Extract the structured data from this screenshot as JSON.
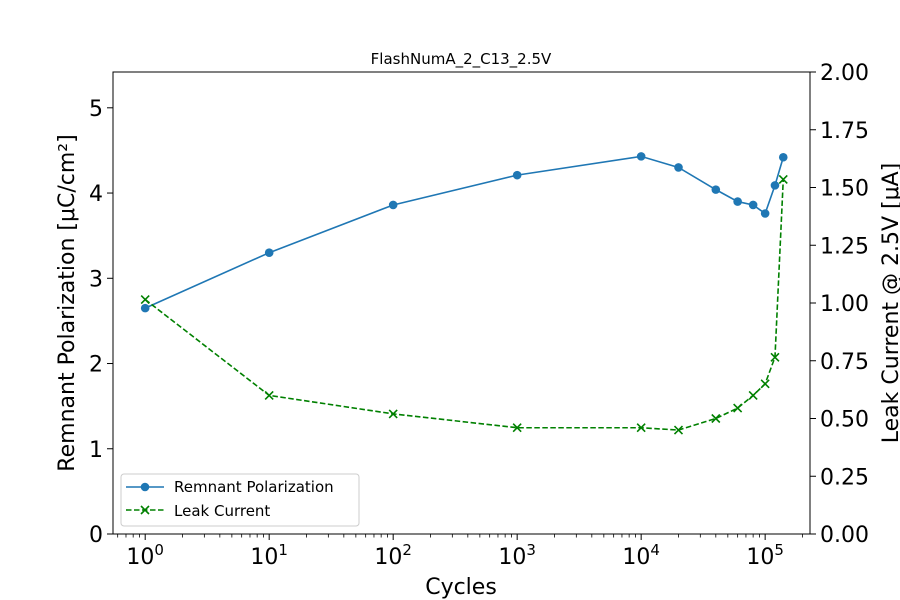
{
  "chart_data": {
    "type": "line",
    "title": "FlashNumA_2_C13_2.5V",
    "xlabel": "Cycles",
    "ylabel": "Remnant Polarization [μC/cm²]",
    "y2label": "Leak Current @ 2.5V [μA]",
    "x_scale": "log",
    "xlim": [
      0.55,
      230000
    ],
    "ylim": [
      0,
      5.42
    ],
    "y2lim": [
      0,
      2.0
    ],
    "x_ticks": [
      1,
      10,
      100,
      1000,
      10000,
      100000
    ],
    "x_tick_labels": [
      {
        "base": "10",
        "exp": "0"
      },
      {
        "base": "10",
        "exp": "1"
      },
      {
        "base": "10",
        "exp": "2"
      },
      {
        "base": "10",
        "exp": "3"
      },
      {
        "base": "10",
        "exp": "4"
      },
      {
        "base": "10",
        "exp": "5"
      }
    ],
    "y_ticks": [
      0,
      1,
      2,
      3,
      4,
      5
    ],
    "y_tick_labels": [
      "0",
      "1",
      "2",
      "3",
      "4",
      "5"
    ],
    "y2_ticks": [
      0,
      0.25,
      0.5,
      0.75,
      1.0,
      1.25,
      1.5,
      1.75,
      2.0
    ],
    "y2_tick_labels": [
      "0.00",
      "0.25",
      "0.50",
      "0.75",
      "1.00",
      "1.25",
      "1.50",
      "1.75",
      "2.00"
    ],
    "grid": false,
    "legend_position": "bottom-left",
    "series": [
      {
        "name": "Remnant Polarization",
        "axis": "left",
        "color": "#1f77b4",
        "line_style": "solid",
        "marker": "circle",
        "x": [
          1,
          10,
          100,
          1000,
          10000,
          20000,
          40000,
          60000,
          80000,
          100000,
          120000,
          140000
        ],
        "y": [
          2.65,
          3.3,
          3.86,
          4.21,
          4.43,
          4.3,
          4.04,
          3.9,
          3.86,
          3.76,
          4.09,
          4.42
        ]
      },
      {
        "name": "Leak Current",
        "axis": "right",
        "color": "#008000",
        "line_style": "dashed",
        "marker": "x",
        "x": [
          1,
          10,
          100,
          1000,
          10000,
          20000,
          40000,
          60000,
          80000,
          100000,
          120000,
          140000
        ],
        "y": [
          1.015,
          0.6,
          0.52,
          0.46,
          0.46,
          0.45,
          0.5,
          0.545,
          0.6,
          0.65,
          0.765,
          1.535
        ]
      }
    ]
  }
}
